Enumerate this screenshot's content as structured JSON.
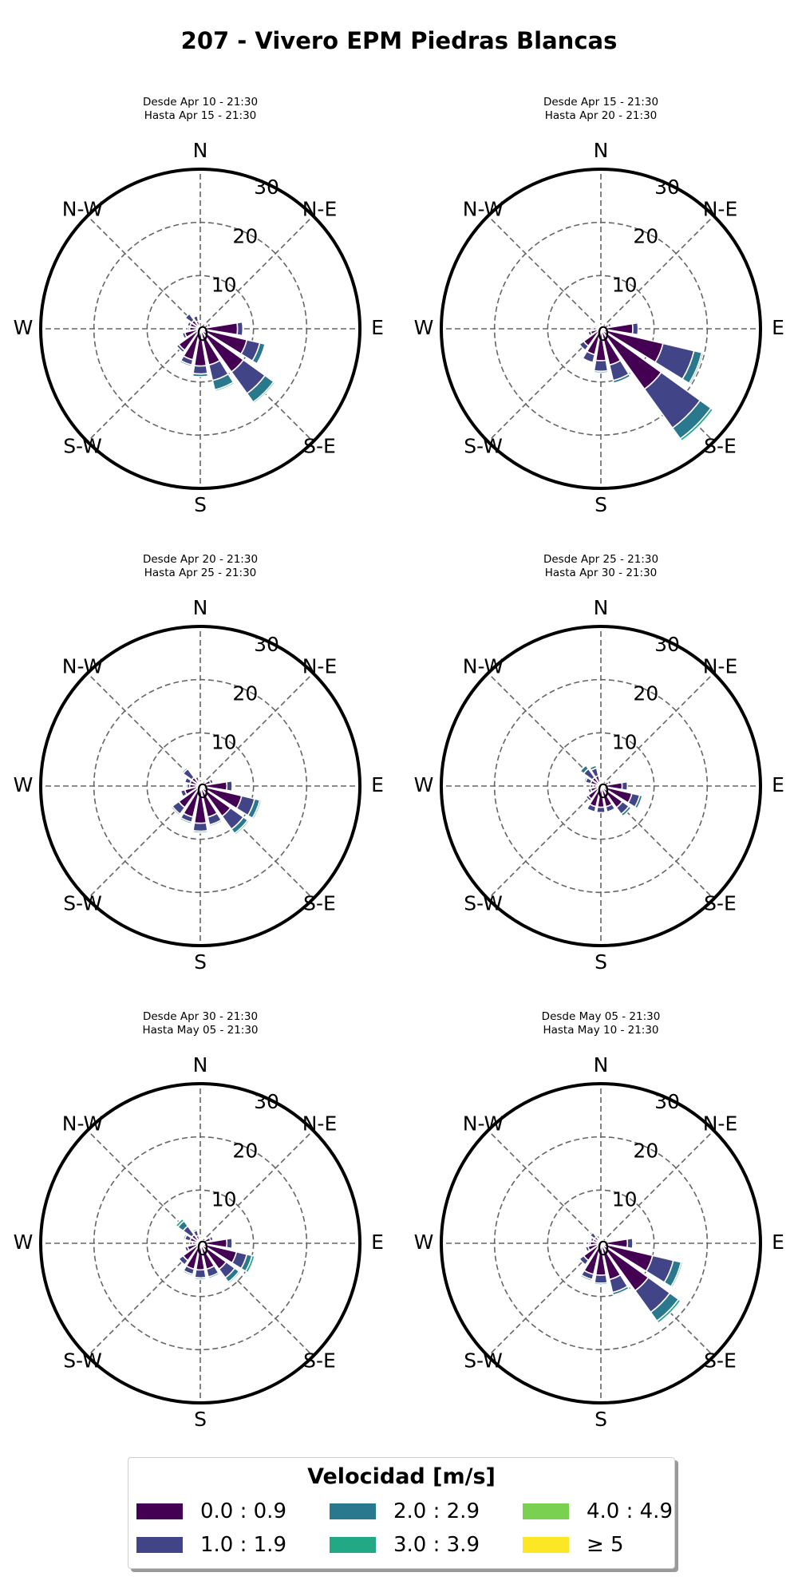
{
  "title": "207 - Vivero EPM Piedras Blancas",
  "legend": {
    "title": "Velocidad [m/s]",
    "items": [
      {
        "label": "0.0 : 0.9",
        "color": "#440154"
      },
      {
        "label": "1.0 : 1.9",
        "color": "#414487"
      },
      {
        "label": "2.0 : 2.9",
        "color": "#2a788e"
      },
      {
        "label": "3.0 : 3.9",
        "color": "#22a884"
      },
      {
        "label": "4.0 : 4.9",
        "color": "#7ad151"
      },
      {
        "label": "≥ 5",
        "color": "#fde725"
      }
    ]
  },
  "chart_data": {
    "type": "windrose",
    "direction_labels": [
      "N",
      "N-E",
      "E",
      "S-E",
      "S",
      "S-W",
      "W",
      "N-W"
    ],
    "radial_ticks": [
      0,
      10,
      20,
      30
    ],
    "rmax": 30,
    "sector_centers_deg": [
      0,
      22.5,
      45,
      67.5,
      90,
      112.5,
      135,
      157.5,
      180,
      202.5,
      225,
      247.5,
      270,
      292.5,
      315,
      337.5
    ],
    "speed_bins": [
      "0.0 : 0.9",
      "1.0 : 1.9",
      "2.0 : 2.9",
      "3.0 : 3.9",
      "4.0 : 4.9",
      "≥ 5"
    ],
    "panels": [
      {
        "title_lines": [
          "Desde Apr 10 - 21:30",
          "Hasta Apr 15 - 21:30"
        ],
        "sectors": [
          [
            0.2,
            0.1,
            0,
            0,
            0,
            0
          ],
          [
            0.3,
            0.1,
            0,
            0,
            0,
            0
          ],
          [
            0.3,
            0.1,
            0,
            0,
            0,
            0
          ],
          [
            1.5,
            0.5,
            0,
            0,
            0,
            0
          ],
          [
            7,
            1,
            0,
            0,
            0,
            0
          ],
          [
            9,
            2.5,
            1,
            0,
            0,
            0
          ],
          [
            10,
            5,
            2,
            0.3,
            0,
            0
          ],
          [
            7,
            3,
            1.8,
            0.3,
            0,
            0
          ],
          [
            7,
            1.5,
            0.5,
            0,
            0,
            0
          ],
          [
            6,
            1,
            0.3,
            0,
            0,
            0
          ],
          [
            5,
            0.5,
            0,
            0,
            0,
            0
          ],
          [
            3,
            0.5,
            0,
            0,
            0,
            0
          ],
          [
            2,
            0.3,
            0,
            0,
            0,
            0
          ],
          [
            2,
            0.5,
            0,
            0,
            0,
            0
          ],
          [
            2,
            1.5,
            0,
            0,
            0,
            0
          ],
          [
            1.5,
            1,
            0,
            0,
            0,
            0
          ]
        ]
      },
      {
        "title_lines": [
          "Desde Apr 15 - 21:30",
          "Hasta Apr 20 - 21:30"
        ],
        "sectors": [
          [
            0.5,
            0.2,
            0,
            0,
            0,
            0
          ],
          [
            0.5,
            0.2,
            0,
            0,
            0,
            0
          ],
          [
            0.5,
            0.2,
            0,
            0,
            0,
            0
          ],
          [
            1.5,
            0.5,
            0,
            0,
            0,
            0
          ],
          [
            6,
            1,
            0,
            0,
            0,
            0
          ],
          [
            12,
            6,
            1.5,
            0.3,
            0,
            0
          ],
          [
            14,
            9,
            2.5,
            0.5,
            0,
            0
          ],
          [
            7,
            3,
            0.5,
            0,
            0,
            0
          ],
          [
            6,
            2,
            0.3,
            0,
            0,
            0
          ],
          [
            5,
            1.5,
            0,
            0,
            0,
            0
          ],
          [
            4,
            1,
            0,
            0,
            0,
            0
          ],
          [
            2,
            0.5,
            0,
            0,
            0,
            0
          ],
          [
            1.5,
            0.3,
            0,
            0,
            0,
            0
          ],
          [
            1,
            0.3,
            0,
            0,
            0,
            0
          ],
          [
            0.8,
            0.3,
            0,
            0,
            0,
            0
          ],
          [
            0.5,
            0.2,
            0,
            0,
            0,
            0
          ]
        ]
      },
      {
        "title_lines": [
          "Desde Apr 20 - 21:30",
          "Hasta Apr 25 - 21:30"
        ],
        "sectors": [
          [
            0.5,
            0.3,
            0,
            0,
            0,
            0
          ],
          [
            0.5,
            0.3,
            0,
            0,
            0,
            0
          ],
          [
            0.5,
            0.3,
            0,
            0,
            0,
            0
          ],
          [
            2,
            0.5,
            0,
            0,
            0,
            0
          ],
          [
            5,
            1,
            0,
            0,
            0,
            0
          ],
          [
            8,
            2.5,
            1,
            0.3,
            0,
            0
          ],
          [
            7,
            3,
            1,
            0.3,
            0,
            0
          ],
          [
            6,
            1.5,
            0.3,
            0,
            0,
            0
          ],
          [
            7,
            1.5,
            0.3,
            0,
            0,
            0
          ],
          [
            6,
            1,
            0.3,
            0,
            0,
            0
          ],
          [
            5,
            1.5,
            0.3,
            0,
            0,
            0
          ],
          [
            3,
            0.8,
            0,
            0,
            0,
            0
          ],
          [
            2,
            0.5,
            0,
            0,
            0,
            0
          ],
          [
            2,
            1,
            0,
            0,
            0,
            0
          ],
          [
            2,
            2,
            0.3,
            0,
            0,
            0
          ],
          [
            1,
            0.8,
            0,
            0,
            0,
            0
          ]
        ]
      },
      {
        "title_lines": [
          "Desde Apr 25 - 21:30",
          "Hasta Apr 30 - 21:30"
        ],
        "sectors": [
          [
            1,
            0.3,
            0,
            0,
            0,
            0
          ],
          [
            0.5,
            0.3,
            0,
            0,
            0,
            0
          ],
          [
            0.5,
            0.2,
            0,
            0,
            0,
            0
          ],
          [
            1.5,
            0.5,
            0,
            0,
            0,
            0
          ],
          [
            4,
            1,
            0,
            0,
            0,
            0
          ],
          [
            6,
            1.5,
            0.5,
            0,
            0,
            0
          ],
          [
            5,
            1.5,
            0.5,
            0,
            0,
            0
          ],
          [
            4,
            1,
            0,
            0,
            0,
            0
          ],
          [
            4,
            1,
            0,
            0,
            0,
            0
          ],
          [
            4,
            1,
            0,
            0,
            0,
            0
          ],
          [
            3,
            0.5,
            0,
            0,
            0,
            0
          ],
          [
            2,
            0.5,
            0,
            0,
            0,
            0
          ],
          [
            1.5,
            0.5,
            0,
            0,
            0,
            0
          ],
          [
            2,
            1,
            0.3,
            0,
            0,
            0
          ],
          [
            2,
            2,
            0.8,
            0,
            0,
            0
          ],
          [
            2,
            1.5,
            0.5,
            0,
            0,
            0
          ]
        ]
      },
      {
        "title_lines": [
          "Desde Apr 30 - 21:30",
          "Hasta May 05 - 21:30"
        ],
        "sectors": [
          [
            1,
            0.3,
            0,
            0,
            0,
            0
          ],
          [
            0.5,
            0.2,
            0,
            0,
            0,
            0
          ],
          [
            0.5,
            0.2,
            0,
            0,
            0,
            0
          ],
          [
            2,
            0.5,
            0,
            0,
            0,
            0
          ],
          [
            5,
            1,
            0,
            0,
            0,
            0
          ],
          [
            7,
            2,
            1,
            0.5,
            0,
            0
          ],
          [
            6,
            2,
            1,
            0.3,
            0,
            0
          ],
          [
            5,
            1.5,
            0.3,
            0,
            0,
            0
          ],
          [
            5,
            1.5,
            0.3,
            0,
            0,
            0
          ],
          [
            5,
            1,
            0.3,
            0,
            0,
            0
          ],
          [
            4,
            1,
            0,
            0,
            0,
            0
          ],
          [
            2.5,
            0.5,
            0,
            0,
            0,
            0
          ],
          [
            1.5,
            0.5,
            0,
            0,
            0,
            0
          ],
          [
            2,
            1,
            0.3,
            0,
            0,
            0
          ],
          [
            2,
            2,
            1.2,
            0.5,
            0,
            0
          ],
          [
            1.5,
            1,
            0.3,
            0,
            0,
            0
          ]
        ]
      },
      {
        "title_lines": [
          "Desde May 05 - 21:30",
          "Hasta May 10 - 21:30"
        ],
        "sectors": [
          [
            0.8,
            0.3,
            0,
            0,
            0,
            0
          ],
          [
            0.5,
            0.2,
            0,
            0,
            0,
            0
          ],
          [
            0.5,
            0.2,
            0,
            0,
            0,
            0
          ],
          [
            1,
            0.3,
            0,
            0,
            0,
            0
          ],
          [
            5,
            1,
            0,
            0,
            0,
            0
          ],
          [
            10,
            4,
            1.5,
            0.3,
            0,
            0
          ],
          [
            11,
            5,
            2,
            0.5,
            0,
            0
          ],
          [
            7,
            2.5,
            0.5,
            0,
            0,
            0
          ],
          [
            6,
            1.5,
            0.3,
            0,
            0,
            0
          ],
          [
            6,
            1,
            0.3,
            0,
            0,
            0
          ],
          [
            4,
            1,
            0,
            0,
            0,
            0
          ],
          [
            2.5,
            0.5,
            0,
            0,
            0,
            0
          ],
          [
            2,
            0.3,
            0,
            0,
            0,
            0
          ],
          [
            1.5,
            0.5,
            0,
            0,
            0,
            0
          ],
          [
            1.5,
            1,
            0,
            0,
            0,
            0
          ],
          [
            1,
            0.5,
            0,
            0,
            0,
            0
          ]
        ]
      }
    ]
  }
}
